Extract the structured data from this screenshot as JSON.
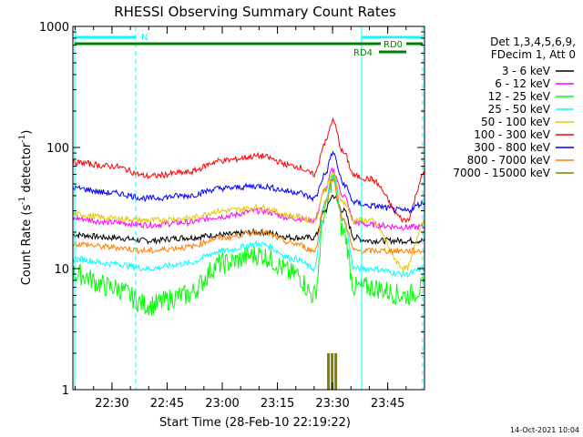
{
  "chart_data": {
    "type": "line",
    "title": "RHESSI Observing Summary Count Rates",
    "xlabel": "Start Time (28-Feb-10 22:19:22)",
    "ylabel": "Count Rate (s",
    "ylabel_sup": "-1",
    "ylabel_tail": " detector",
    "ylabel_end": ")",
    "y_scale": "log",
    "ylim": [
      1,
      1000
    ],
    "xlim": [
      "22:19:22",
      "23:55:00"
    ],
    "x_ticks": [
      "22:30",
      "22:45",
      "23:00",
      "23:15",
      "23:30",
      "23:45"
    ],
    "y_ticks": [
      "1",
      "10",
      "100",
      "1000"
    ],
    "legend_position": "right",
    "legend_header": [
      "Det 1,3,4,5,6,9,",
      "FDecim 1, Att 0"
    ],
    "footer": "14-Oct-2021 10:04",
    "annotations": {
      "night_label": "N",
      "rd0_label": "RD0",
      "rd4_label": "RD4"
    },
    "series": [
      {
        "name": "3 - 6 keV",
        "color": "#000000",
        "x": [
          "22:20",
          "22:30",
          "22:40",
          "22:50",
          "23:00",
          "23:10",
          "23:20",
          "23:25",
          "23:28",
          "23:30",
          "23:33",
          "23:36",
          "23:40",
          "23:50",
          "23:55"
        ],
        "values": [
          19,
          18,
          17,
          18,
          19,
          20,
          18,
          18,
          30,
          40,
          30,
          18,
          17,
          17,
          17
        ]
      },
      {
        "name": "6 - 12 keV",
        "color": "#ff00ff",
        "x": [
          "22:20",
          "22:30",
          "22:40",
          "22:50",
          "23:00",
          "23:10",
          "23:20",
          "23:25",
          "23:28",
          "23:30",
          "23:33",
          "23:36",
          "23:40",
          "23:50",
          "23:55"
        ],
        "values": [
          26,
          24,
          23,
          24,
          27,
          30,
          26,
          25,
          45,
          65,
          40,
          24,
          23,
          22,
          22
        ]
      },
      {
        "name": "12 - 25 keV",
        "color": "#00ff00",
        "x": [
          "22:20",
          "22:30",
          "22:40",
          "22:50",
          "23:00",
          "23:10",
          "23:20",
          "23:25",
          "23:28",
          "23:30",
          "23:33",
          "23:36",
          "23:40",
          "23:50",
          "23:55"
        ],
        "values": [
          9,
          7,
          5,
          6,
          11,
          13,
          9,
          6,
          30,
          55,
          20,
          7,
          7,
          6,
          7
        ]
      },
      {
        "name": "25 - 50 keV",
        "color": "#00ffff",
        "x": [
          "22:20",
          "22:30",
          "22:40",
          "22:50",
          "23:00",
          "23:10",
          "23:20",
          "23:25",
          "23:28",
          "23:30",
          "23:33",
          "23:36",
          "23:40",
          "23:50",
          "23:55"
        ],
        "values": [
          12,
          11,
          10,
          11,
          14,
          16,
          12,
          10,
          35,
          60,
          25,
          10,
          10,
          9,
          10
        ]
      },
      {
        "name": "50 - 100 keV",
        "color": "#e6c800",
        "x": [
          "22:20",
          "22:30",
          "22:40",
          "22:50",
          "23:00",
          "23:10",
          "23:20",
          "23:25",
          "23:28",
          "23:30",
          "23:33",
          "23:36",
          "23:40",
          "23:50",
          "23:55"
        ],
        "values": [
          28,
          26,
          25,
          26,
          30,
          32,
          27,
          25,
          45,
          60,
          35,
          25,
          25,
          10,
          25
        ]
      },
      {
        "name": "100 - 300 keV",
        "color": "#ff0000",
        "x": [
          "22:20",
          "22:30",
          "22:40",
          "22:50",
          "23:00",
          "23:10",
          "23:20",
          "23:25",
          "23:28",
          "23:30",
          "23:33",
          "23:36",
          "23:40",
          "23:50",
          "23:55"
        ],
        "values": [
          75,
          70,
          58,
          62,
          78,
          85,
          70,
          60,
          110,
          165,
          90,
          58,
          55,
          25,
          60
        ]
      },
      {
        "name": "300 - 800 keV",
        "color": "#0000ff",
        "x": [
          "22:20",
          "22:30",
          "22:40",
          "22:50",
          "23:00",
          "23:10",
          "23:20",
          "23:25",
          "23:28",
          "23:30",
          "23:33",
          "23:36",
          "23:40",
          "23:50",
          "23:55"
        ],
        "values": [
          46,
          42,
          38,
          40,
          46,
          48,
          43,
          38,
          60,
          90,
          50,
          35,
          33,
          30,
          35
        ]
      },
      {
        "name": "800 - 7000 keV",
        "color": "#ff8000",
        "x": [
          "22:20",
          "22:30",
          "22:40",
          "22:50",
          "23:00",
          "23:10",
          "23:20",
          "23:25",
          "23:28",
          "23:30",
          "23:33",
          "23:36",
          "23:40",
          "23:50",
          "23:55"
        ],
        "values": [
          16,
          15,
          14,
          15,
          18,
          20,
          16,
          14,
          35,
          55,
          25,
          14,
          14,
          14,
          14
        ]
      },
      {
        "name": "7000 - 15000 keV",
        "color": "#808000",
        "x": [
          "23:29",
          "23:30",
          "23:31"
        ],
        "values": [
          2,
          2,
          2
        ]
      }
    ]
  }
}
